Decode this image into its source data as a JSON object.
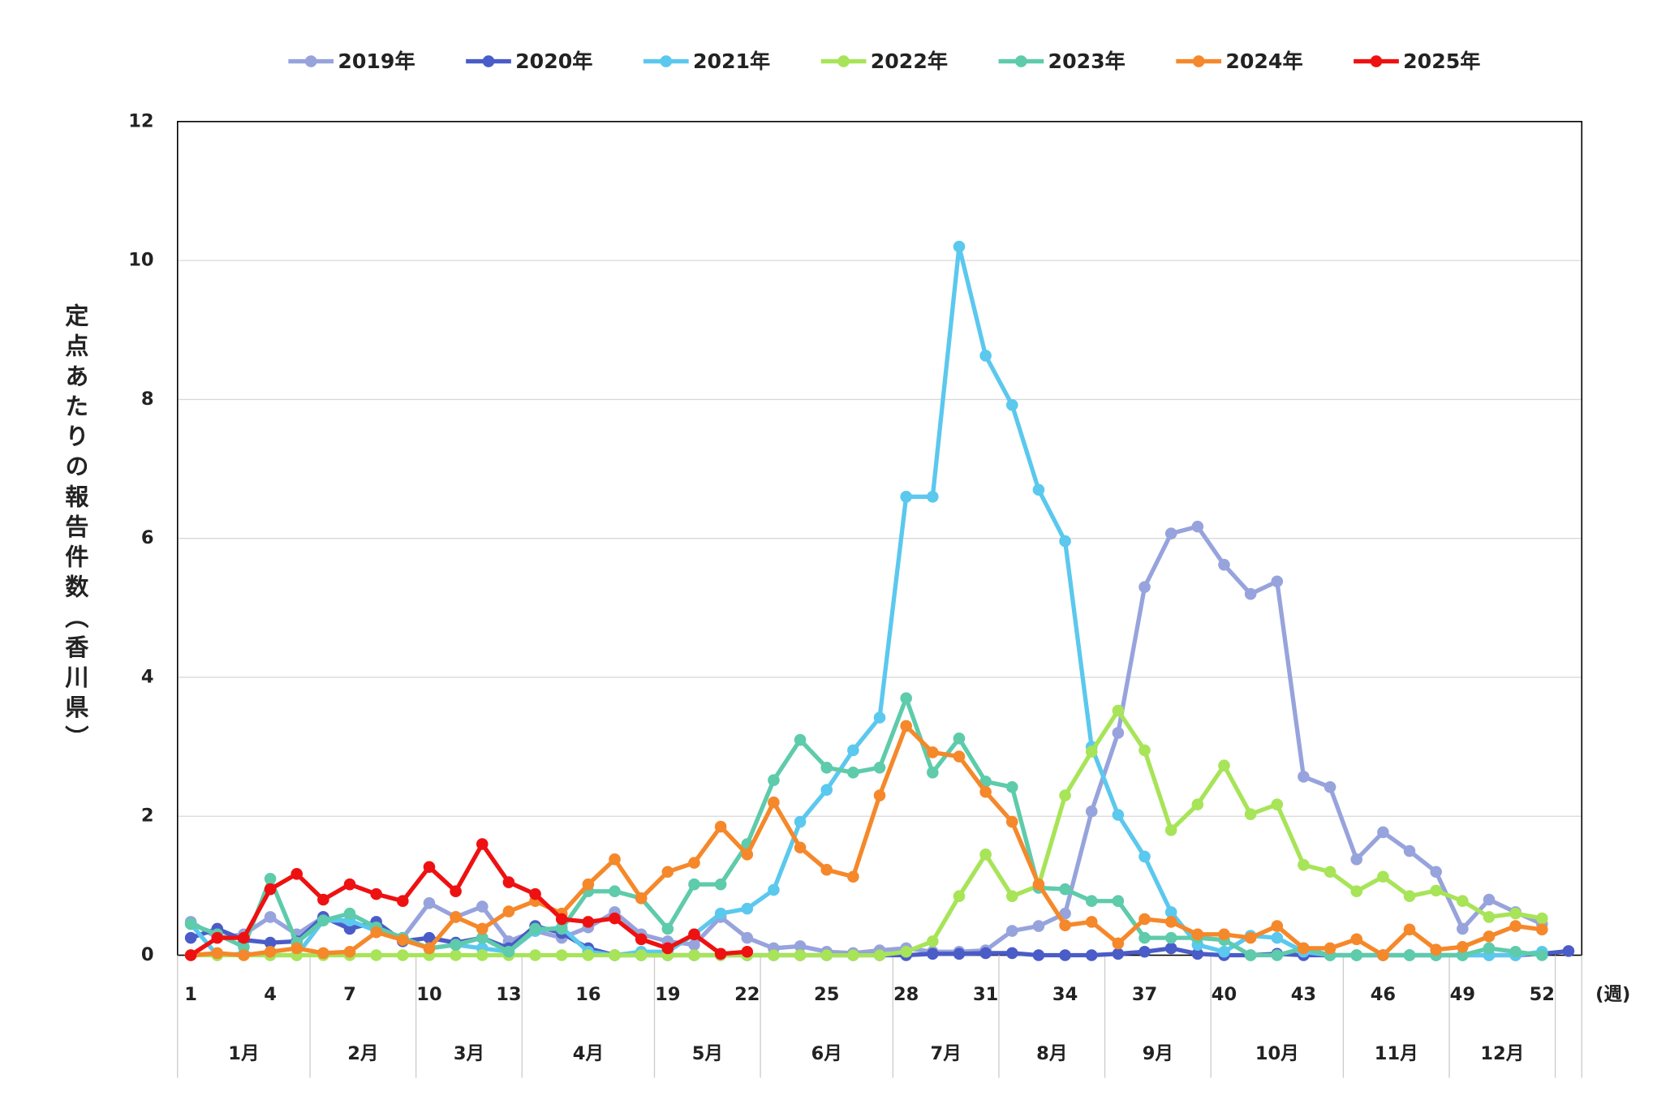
{
  "chart_data": {
    "type": "line",
    "ylabel": "定点あたりの報告件数（香川県）",
    "xlabel": "(週)",
    "categories": [
      "1",
      null,
      null,
      "4",
      null,
      null,
      "7",
      null,
      null,
      "10",
      null,
      null,
      "13",
      null,
      null,
      "16",
      null,
      null,
      "19",
      null,
      null,
      "22",
      null,
      null,
      "25",
      null,
      null,
      "28",
      null,
      null,
      "31",
      null,
      null,
      "34",
      null,
      null,
      "37",
      null,
      null,
      "40",
      null,
      null,
      "43",
      null,
      null,
      "46",
      null,
      null,
      "49",
      null,
      null,
      "52",
      null
    ],
    "months": [
      "1月",
      "2月",
      "3月",
      "4月",
      "5月",
      "6月",
      "7月",
      "8月",
      "9月",
      "10月",
      "11月",
      "12月"
    ],
    "ylim": [
      0,
      12
    ],
    "yticks": [
      0,
      2,
      4,
      6,
      8,
      10,
      12
    ],
    "grid": true,
    "series": [
      {
        "name": "2019年",
        "color": "#97a3dc",
        "values": [
          0.48,
          0.25,
          0.3,
          0.55,
          0.3,
          0.55,
          0.45,
          0.4,
          0.25,
          0.75,
          0.55,
          0.7,
          0.2,
          0.35,
          0.25,
          0.4,
          0.62,
          0.3,
          0.2,
          0.15,
          0.55,
          0.25,
          0.1,
          0.13,
          0.05,
          0.03,
          0.07,
          0.1,
          0.05,
          0.05,
          0.07,
          0.35,
          0.42,
          0.6,
          2.07,
          3.2,
          5.3,
          6.07,
          6.17,
          5.62,
          5.2,
          5.38,
          2.57,
          2.42,
          1.38,
          1.77,
          1.5,
          1.2,
          0.38,
          0.8,
          0.62,
          0.45,
          null
        ]
      },
      {
        "name": "2020年",
        "color": "#4a5cc8",
        "values": [
          0.25,
          0.38,
          0.22,
          0.18,
          0.2,
          0.55,
          0.38,
          0.48,
          0.2,
          0.25,
          0.18,
          0.25,
          0.1,
          0.42,
          0.32,
          0.1,
          0,
          0,
          0,
          0,
          0,
          0,
          0,
          0,
          0,
          0,
          0,
          0,
          0.02,
          0.02,
          0.03,
          0.03,
          0,
          0,
          0,
          0.02,
          0.05,
          0.1,
          0.02,
          0,
          0,
          0.02,
          0,
          0,
          0,
          0,
          0,
          0,
          0,
          0,
          0,
          0.02,
          0.06
        ]
      },
      {
        "name": "2021年",
        "color": "#5bc8ee",
        "values": [
          0.45,
          0,
          0.02,
          0,
          0,
          0.5,
          0.5,
          0.35,
          0.25,
          0.1,
          0.15,
          0.1,
          0.05,
          0.35,
          0.4,
          0.05,
          0,
          0.05,
          0.05,
          0.3,
          0.6,
          0.67,
          0.94,
          1.92,
          2.38,
          2.95,
          3.42,
          6.6,
          6.6,
          10.2,
          8.63,
          7.92,
          6.7,
          5.96,
          3.0,
          2.02,
          1.42,
          0.62,
          0.15,
          0.05,
          0.28,
          0.25,
          0.05,
          0,
          0,
          0,
          0,
          0,
          0,
          0,
          0,
          0.05,
          null
        ]
      },
      {
        "name": "2022年",
        "color": "#a7e458",
        "values": [
          0,
          0,
          0,
          0,
          0,
          0,
          0,
          0,
          0,
          0,
          0,
          0,
          0,
          0,
          0,
          0,
          0,
          0,
          0,
          0,
          0,
          0,
          0,
          0,
          0,
          0,
          0,
          0.05,
          0.2,
          0.85,
          1.45,
          0.85,
          1.0,
          2.3,
          2.93,
          3.52,
          2.95,
          1.8,
          2.17,
          2.73,
          2.03,
          2.17,
          1.3,
          1.2,
          0.92,
          1.13,
          0.85,
          0.93,
          0.78,
          0.55,
          0.6,
          0.53,
          null
        ]
      },
      {
        "name": "2023年",
        "color": "#5ecbab",
        "values": [
          0.45,
          0.3,
          0.12,
          1.1,
          0.18,
          0.5,
          0.6,
          0.4,
          0.25,
          0.1,
          0.15,
          0.25,
          0.05,
          0.38,
          0.38,
          0.92,
          0.92,
          0.82,
          0.38,
          1.02,
          1.02,
          1.6,
          2.52,
          3.1,
          2.7,
          2.63,
          2.7,
          3.7,
          2.63,
          3.12,
          2.5,
          2.42,
          0.97,
          0.95,
          0.78,
          0.78,
          0.25,
          0.25,
          0.25,
          0.22,
          0,
          0,
          0.1,
          0,
          0,
          0,
          0,
          0,
          0,
          0.1,
          0.05,
          0,
          null
        ]
      },
      {
        "name": "2024年",
        "color": "#f5882a",
        "values": [
          0,
          0.03,
          0,
          0.05,
          0.1,
          0.03,
          0.05,
          0.33,
          0.22,
          0.1,
          0.55,
          0.38,
          0.63,
          0.78,
          0.6,
          1.02,
          1.38,
          0.82,
          1.2,
          1.33,
          1.85,
          1.45,
          2.2,
          1.55,
          1.23,
          1.13,
          2.3,
          3.3,
          2.92,
          2.86,
          2.35,
          1.92,
          1.02,
          0.43,
          0.48,
          0.17,
          0.52,
          0.48,
          0.3,
          0.3,
          0.25,
          0.42,
          0.1,
          0.1,
          0.23,
          0,
          0.37,
          0.08,
          0.12,
          0.27,
          0.42,
          0.37,
          null
        ]
      },
      {
        "name": "2025年",
        "color": "#ee1111",
        "values": [
          0,
          0.25,
          0.25,
          0.95,
          1.17,
          0.8,
          1.02,
          0.88,
          0.78,
          1.27,
          0.92,
          1.6,
          1.05,
          0.88,
          0.52,
          0.48,
          0.53,
          0.23,
          0.1,
          0.3,
          0.02,
          0.05,
          null,
          null,
          null,
          null,
          null,
          null,
          null,
          null,
          null,
          null,
          null,
          null,
          null,
          null,
          null,
          null,
          null,
          null,
          null,
          null,
          null,
          null,
          null,
          null,
          null,
          null,
          null,
          null,
          null,
          null,
          null
        ]
      }
    ]
  }
}
